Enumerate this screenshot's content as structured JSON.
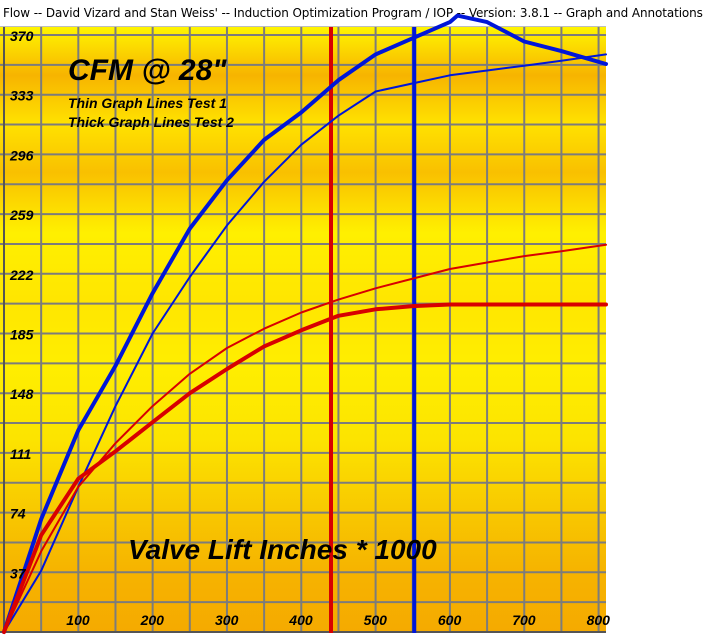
{
  "window": {
    "title": "Flow -- David Vizard and Stan Weiss' -- Induction Optimization Program / IOP -- Version: 3.8.1 -- Graph and Annotations"
  },
  "colors": {
    "bg_yellow": "#ffee00",
    "bg_orange": "#f5a800",
    "grid": "#7c7c7c",
    "blue": "#0016d8",
    "red": "#d80000",
    "text": "#000000"
  },
  "chart_data": {
    "type": "line",
    "title": "CFM @ 28\"",
    "legend": [
      "Thin Graph Lines Test 1",
      "Thick Graph Lines Test 2"
    ],
    "xlabel": "Valve Lift Inches * 1000",
    "ylabel": "",
    "xlim": [
      0,
      810
    ],
    "ylim": [
      0,
      370
    ],
    "x_ticks": [
      100,
      200,
      300,
      400,
      500,
      600,
      700,
      800
    ],
    "y_ticks": [
      37,
      74,
      111,
      148,
      185,
      222,
      259,
      296,
      333,
      370
    ],
    "x_ticks_labels": [
      "100",
      "200",
      "300",
      "400",
      "500",
      "600",
      "700",
      "800"
    ],
    "y_ticks_labels": [
      "37",
      "74",
      "111",
      "148",
      "185",
      "222",
      "259",
      "296",
      "333",
      "370"
    ],
    "grid": true,
    "vertical_markers": [
      {
        "x": 440,
        "color": "red"
      },
      {
        "x": 552,
        "color": "blue"
      }
    ],
    "series": [
      {
        "name": "Test 1",
        "color": "blue",
        "weight": "thin",
        "x": [
          0,
          50,
          100,
          150,
          200,
          250,
          300,
          350,
          400,
          450,
          500,
          550,
          600,
          650,
          700,
          750,
          810
        ],
        "y": [
          0,
          38,
          90,
          140,
          185,
          220,
          252,
          279,
          302,
          320,
          335,
          340,
          345,
          348,
          351,
          354,
          358
        ]
      },
      {
        "name": "Test 2",
        "color": "blue",
        "weight": "thick",
        "x": [
          0,
          50,
          100,
          150,
          200,
          250,
          300,
          350,
          400,
          450,
          500,
          550,
          600,
          610,
          650,
          700,
          750,
          810
        ],
        "y": [
          0,
          70,
          125,
          165,
          210,
          250,
          280,
          305,
          322,
          342,
          358,
          368,
          378,
          382,
          378,
          366,
          360,
          352
        ]
      },
      {
        "name": "Test 1",
        "color": "red",
        "weight": "thin",
        "x": [
          0,
          50,
          100,
          150,
          200,
          250,
          300,
          350,
          400,
          450,
          500,
          550,
          600,
          650,
          700,
          750,
          810
        ],
        "y": [
          0,
          50,
          90,
          117,
          140,
          160,
          176,
          188,
          198,
          206,
          213,
          219,
          225,
          229,
          233,
          236,
          240
        ]
      },
      {
        "name": "Test 2",
        "color": "red",
        "weight": "thick",
        "x": [
          0,
          50,
          100,
          150,
          200,
          250,
          300,
          350,
          400,
          450,
          500,
          550,
          600,
          650,
          700,
          750,
          810
        ],
        "y": [
          0,
          60,
          95,
          112,
          130,
          148,
          163,
          177,
          187,
          196,
          200,
          202,
          203,
          203,
          203,
          203,
          203
        ]
      }
    ]
  }
}
